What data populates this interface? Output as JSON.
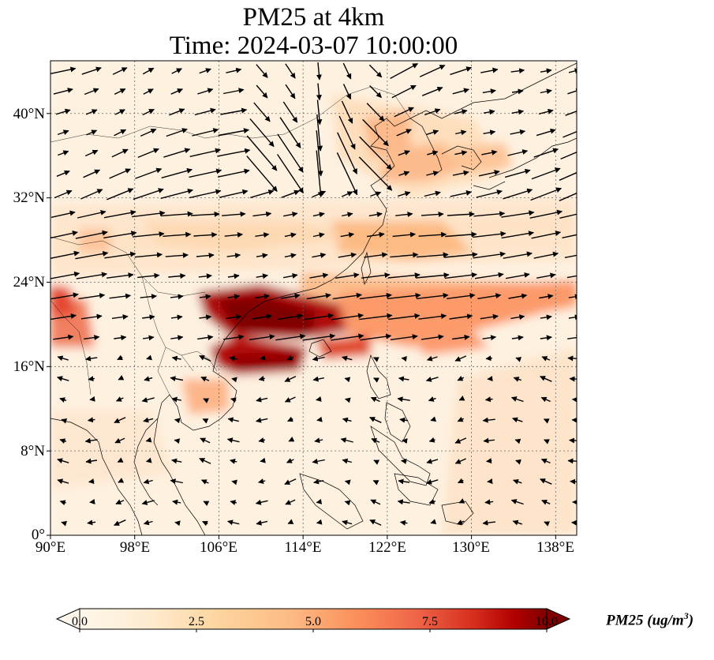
{
  "title": "PM25 at 4km",
  "subtitle": "Time: 2024-03-07 10:00:00",
  "map": {
    "projection": "plate-carree",
    "lon_range": [
      90,
      140
    ],
    "lat_range": [
      0,
      45
    ],
    "x_ticks": [
      "90°E",
      "98°E",
      "106°E",
      "114°E",
      "122°E",
      "130°E",
      "138°E"
    ],
    "y_ticks": [
      "0°",
      "8°N",
      "16°N",
      "24°N",
      "32°N",
      "40°N"
    ],
    "gridlines": "dotted",
    "field": "PM25",
    "overlay": "wind vectors",
    "colormap": "OrRd",
    "colors": {
      "low": "#fff7ec",
      "mid": "#fdbb84",
      "high": "#7f0000",
      "coast": "#000000",
      "grid": "#666666"
    }
  },
  "colorbar": {
    "min": 0.0,
    "max": 10.0,
    "ticks": [
      "0.0",
      "2.5",
      "5.0",
      "7.5",
      "10.0"
    ],
    "label_main": "PM25 (ug/m",
    "label_sup": "3",
    "label_end": ")",
    "extend": "both"
  }
}
